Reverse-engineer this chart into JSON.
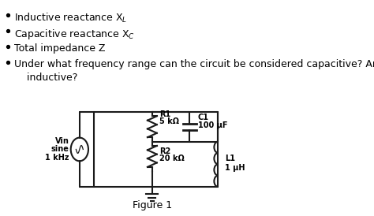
{
  "background_color": "#ffffff",
  "figure_label": "Figure 1",
  "font_size": 9,
  "text_color": "#000000",
  "circuit_color": "#1a1a1a",
  "vin_label": [
    "Vin",
    "sine",
    "1 kHz"
  ],
  "r1_label": [
    "R1",
    "5 kΩ"
  ],
  "r2_label": [
    "R2",
    "20 kΩ"
  ],
  "c1_label": [
    "C1",
    "100 μF"
  ],
  "l1_label": [
    "L1",
    "1 μH"
  ]
}
